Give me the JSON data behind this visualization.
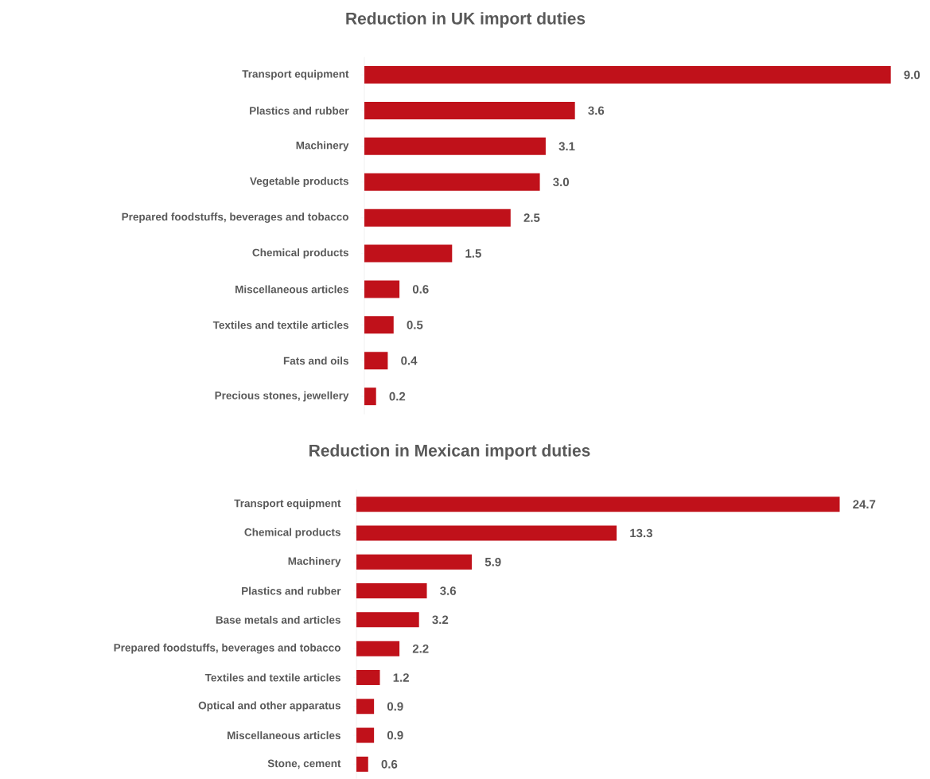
{
  "chart_data": [
    {
      "type": "bar",
      "orientation": "horizontal",
      "title": "Reduction in UK import duties",
      "color": "#c0111a",
      "tick_labels": "y",
      "categories": [
        "Transport equipment",
        "Plastics and rubber",
        "Machinery",
        "Vegetable products",
        "Prepared foodstuffs, beverages and tobacco",
        "Chemical products",
        "Miscellaneous articles",
        "Textiles and textile articles",
        "Fats and oils",
        "Precious stones, jewellery"
      ],
      "values": [
        9.0,
        3.6,
        3.1,
        3.0,
        2.5,
        1.5,
        0.6,
        0.5,
        0.4,
        0.2
      ],
      "value_labels": [
        "9.0",
        "3.6",
        "3.1",
        "3.0",
        "2.5",
        "1.5",
        "0.6",
        "0.5",
        "0.4",
        "0.2"
      ]
    },
    {
      "type": "bar",
      "orientation": "horizontal",
      "title": "Reduction in Mexican import duties",
      "color": "#c0111a",
      "tick_labels": "y",
      "categories": [
        "Transport equipment",
        "Chemical products",
        "Machinery",
        "Plastics and rubber",
        "Base metals and articles",
        "Prepared foodstuffs, beverages and tobacco",
        "Textiles and textile articles",
        "Optical and other apparatus",
        "Miscellaneous articles",
        "Stone, cement"
      ],
      "values": [
        24.7,
        13.3,
        5.9,
        3.6,
        3.2,
        2.2,
        1.2,
        0.9,
        0.9,
        0.6
      ],
      "value_labels": [
        "24.7",
        "13.3",
        "5.9",
        "3.6",
        "3.2",
        "2.2",
        "1.2",
        "0.9",
        "0.9",
        "0.6"
      ]
    }
  ]
}
